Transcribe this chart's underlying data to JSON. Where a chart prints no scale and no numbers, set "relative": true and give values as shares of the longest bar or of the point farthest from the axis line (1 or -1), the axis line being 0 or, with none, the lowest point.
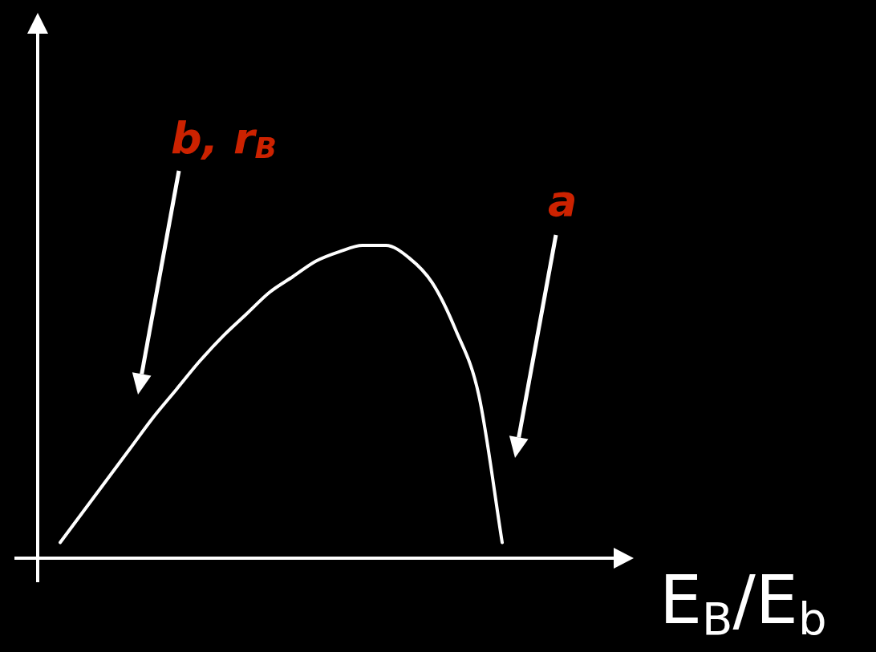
{
  "chart_data": {
    "type": "line",
    "relative": true,
    "tick_labels": false,
    "marker": "none",
    "color": "#ffffff",
    "xlabel": "E$_{B}$/E$_{b}$",
    "annotations": [
      "b, r$_{B}$",
      "a"
    ],
    "categories": [
      null,
      null,
      null,
      null,
      null,
      null,
      null,
      null,
      null,
      null,
      null,
      null,
      null,
      null,
      null,
      null,
      null,
      null,
      null,
      null
    ],
    "values": [
      0.05,
      0.15,
      0.25,
      0.35,
      0.45,
      0.54,
      0.63,
      0.71,
      0.78,
      0.85,
      0.9,
      0.95,
      0.98,
      1.0,
      1.0,
      0.96,
      0.88,
      0.73,
      0.52,
      0.05
    ]
  }
}
